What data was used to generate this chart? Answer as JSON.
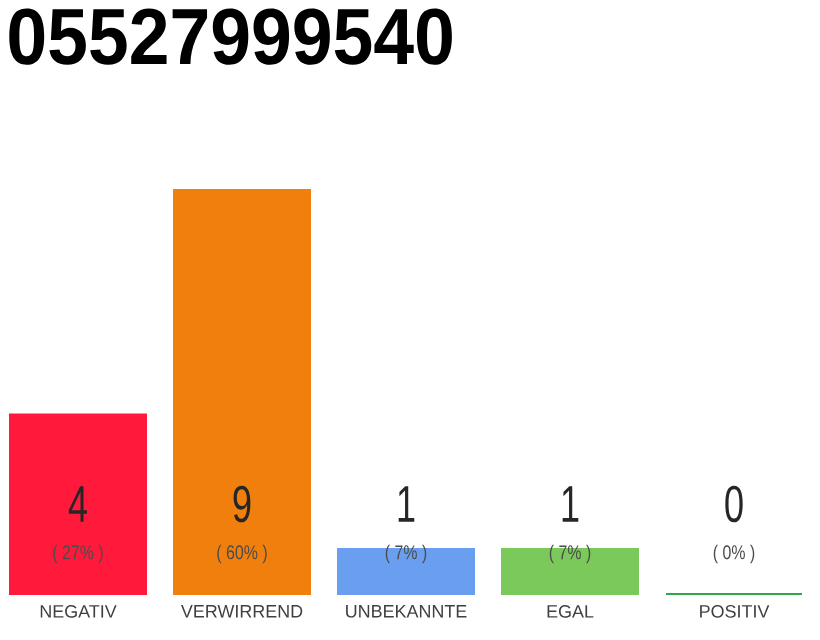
{
  "chart_data": {
    "type": "bar",
    "title": "05527999540",
    "categories": [
      "NEGATIV",
      "VERWIRREND",
      "UNBEKANNTE",
      "EGAL",
      "POSITIV"
    ],
    "values": [
      4,
      9,
      1,
      1,
      0
    ],
    "colors": [
      "#ff1a3c",
      "#f07f0d",
      "#6a9ff0",
      "#7ac95a",
      "#2ca84a"
    ],
    "ylim": [
      0,
      9
    ],
    "data_labels": true,
    "tick_labels": "x",
    "annotations": [
      "( 27% )",
      "( 60% )",
      "( 7% )",
      "( 7% )",
      "( 0% )"
    ]
  }
}
